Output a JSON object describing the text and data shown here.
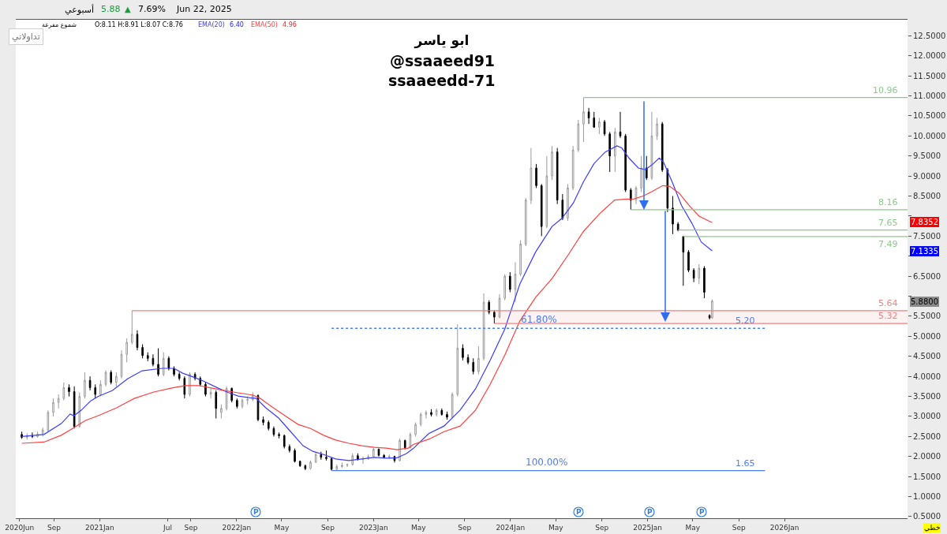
{
  "chart_data": {
    "type": "candlestick",
    "title": "ابو ياسر",
    "xlim": [
      "2020-05-22",
      "2026-11-25"
    ],
    "xticks": [
      {
        "value": "2020-06-01",
        "label": "2020Jun"
      },
      {
        "value": "2020-09-01",
        "label": "Sep"
      },
      {
        "value": "2021-01-01",
        "label": "2021Jan"
      },
      {
        "value": "2021-07-01",
        "label": "Jul"
      },
      {
        "value": "2021-09-01",
        "label": "Sep"
      },
      {
        "value": "2022-01-01",
        "label": "2022Jan"
      },
      {
        "value": "2022-05-01",
        "label": "May"
      },
      {
        "value": "2022-09-01",
        "label": "Sep"
      },
      {
        "value": "2023-01-01",
        "label": "2023Jan"
      },
      {
        "value": "2023-05-01",
        "label": "May"
      },
      {
        "value": "2023-09-01",
        "label": "Sep"
      },
      {
        "value": "2024-01-01",
        "label": "2024Jan"
      },
      {
        "value": "2024-05-01",
        "label": "May"
      },
      {
        "value": "2024-09-01",
        "label": "Sep"
      },
      {
        "value": "2025-01-01",
        "label": "2025Jan"
      },
      {
        "value": "2025-05-01",
        "label": "May"
      },
      {
        "value": "2025-09-01",
        "label": "Sep"
      },
      {
        "value": "2026-01-01",
        "label": "2026Jan"
      }
    ],
    "ylim": [
      0.46,
      12.9
    ],
    "yticks": [
      {
        "value": 0.5,
        "label": "0.5000"
      },
      {
        "value": 1.0,
        "label": "1.0000"
      },
      {
        "value": 1.5,
        "label": "1.5000"
      },
      {
        "value": 2.0,
        "label": "2.0000"
      },
      {
        "value": 2.5,
        "label": "2.5000"
      },
      {
        "value": 3.0,
        "label": "3.0000"
      },
      {
        "value": 3.5,
        "label": "3.5000"
      },
      {
        "value": 4.0,
        "label": "4.0000"
      },
      {
        "value": 4.5,
        "label": "4.5000"
      },
      {
        "value": 5.0,
        "label": "5.0000"
      },
      {
        "value": 5.5,
        "label": "5.5000"
      },
      {
        "value": 6.0,
        "label": null
      },
      {
        "value": 6.5,
        "label": "6.5000"
      },
      {
        "value": 7.0,
        "label": null
      },
      {
        "value": 7.5,
        "label": "7.5000"
      },
      {
        "value": 8.0,
        "label": null
      },
      {
        "value": 8.5,
        "label": "8.5000"
      },
      {
        "value": 9.0,
        "label": "9.0000"
      },
      {
        "value": 9.5,
        "label": "9.5000"
      },
      {
        "value": 10.0,
        "label": "10.0000"
      },
      {
        "value": 10.5,
        "label": "10.5000"
      },
      {
        "value": 11.0,
        "label": "11.0000"
      },
      {
        "value": 11.5,
        "label": "11.5000"
      },
      {
        "value": 12.0,
        "label": "12.0000"
      },
      {
        "value": 12.5,
        "label": "12.5000"
      }
    ],
    "series": [
      {
        "x": [
          "2020-06-07",
          "2020-06-21",
          "2020-07-05",
          "2020-07-19",
          "2020-08-02",
          "2020-08-16",
          "2020-08-30",
          "2020-09-13",
          "2020-09-27",
          "2020-10-11",
          "2020-10-25",
          "2020-11-08",
          "2020-11-22",
          "2020-12-06",
          "2020-12-20",
          "2021-01-03",
          "2021-01-17",
          "2021-01-31",
          "2021-02-14",
          "2021-02-28",
          "2021-03-14",
          "2021-03-28",
          "2021-04-11",
          "2021-04-25",
          "2021-05-09",
          "2021-05-23",
          "2021-06-06",
          "2021-06-20",
          "2021-07-04",
          "2021-07-18",
          "2021-08-01",
          "2021-08-15",
          "2021-08-29",
          "2021-09-12",
          "2021-09-26",
          "2021-10-10",
          "2021-10-24",
          "2021-11-07",
          "2021-11-21",
          "2021-12-05",
          "2021-12-19",
          "2022-01-02",
          "2022-01-16",
          "2022-01-30",
          "2022-02-13",
          "2022-02-27",
          "2022-03-13",
          "2022-03-27",
          "2022-04-10",
          "2022-04-24",
          "2022-05-08",
          "2022-05-22",
          "2022-06-05",
          "2022-06-19",
          "2022-07-03",
          "2022-07-17",
          "2022-07-31",
          "2022-08-14",
          "2022-08-28",
          "2022-09-11",
          "2022-09-25",
          "2022-10-09",
          "2022-10-23",
          "2022-11-06",
          "2022-11-20",
          "2022-12-04",
          "2022-12-18",
          "2023-01-01",
          "2023-01-15",
          "2023-01-29",
          "2023-02-12",
          "2023-02-26",
          "2023-03-12",
          "2023-03-26",
          "2023-04-09",
          "2023-04-23",
          "2023-05-07",
          "2023-05-21",
          "2023-06-04",
          "2023-06-18",
          "2023-07-02",
          "2023-07-16",
          "2023-07-30",
          "2023-08-13",
          "2023-08-27",
          "2023-09-10",
          "2023-09-24",
          "2023-10-08",
          "2023-10-22",
          "2023-11-05",
          "2023-11-19",
          "2023-12-03",
          "2023-12-17",
          "2023-12-31",
          "2024-01-14",
          "2024-01-28",
          "2024-02-11",
          "2024-02-25",
          "2024-03-10",
          "2024-03-24",
          "2024-04-07",
          "2024-04-21",
          "2024-05-05",
          "2024-05-19",
          "2024-06-02",
          "2024-06-16",
          "2024-06-30",
          "2024-07-14",
          "2024-07-28",
          "2024-08-11",
          "2024-08-25",
          "2024-09-08",
          "2024-09-22",
          "2024-10-06",
          "2024-10-20",
          "2024-11-03",
          "2024-11-17",
          "2024-12-01",
          "2024-12-15",
          "2024-12-29",
          "2025-01-12",
          "2025-01-26",
          "2025-02-09",
          "2025-02-23",
          "2025-03-09",
          "2025-03-23",
          "2025-04-06",
          "2025-04-20",
          "2025-05-04",
          "2025-05-18",
          "2025-06-01",
          "2025-06-15",
          "2025-06-22"
        ],
        "ohlc": [
          [
            2.55,
            2.62,
            2.44,
            2.48
          ],
          [
            2.48,
            2.58,
            2.42,
            2.52
          ],
          [
            2.52,
            2.6,
            2.46,
            2.5
          ],
          [
            2.5,
            2.62,
            2.47,
            2.56
          ],
          [
            2.56,
            2.72,
            2.5,
            2.66
          ],
          [
            2.66,
            3.15,
            2.6,
            3.1
          ],
          [
            3.1,
            3.45,
            3.0,
            3.35
          ],
          [
            3.35,
            3.55,
            3.2,
            3.45
          ],
          [
            3.45,
            3.85,
            3.4,
            3.72
          ],
          [
            3.72,
            3.8,
            3.5,
            3.62
          ],
          [
            3.62,
            3.75,
            2.7,
            2.75
          ],
          [
            2.75,
            3.6,
            2.72,
            3.5
          ],
          [
            3.5,
            4.1,
            3.45,
            3.9
          ],
          [
            3.9,
            4.0,
            3.65,
            3.72
          ],
          [
            3.72,
            3.8,
            3.45,
            3.55
          ],
          [
            3.55,
            3.9,
            3.5,
            3.8
          ],
          [
            3.8,
            4.15,
            3.75,
            4.1
          ],
          [
            4.1,
            4.15,
            3.8,
            3.85
          ],
          [
            3.85,
            4.1,
            3.75,
            4.0
          ],
          [
            4.0,
            4.65,
            3.95,
            4.55
          ],
          [
            4.55,
            4.95,
            4.35,
            4.85
          ],
          [
            4.85,
            5.64,
            4.8,
            5.05
          ],
          [
            5.05,
            5.15,
            4.65,
            4.72
          ],
          [
            4.72,
            4.8,
            4.45,
            4.52
          ],
          [
            4.52,
            4.6,
            4.38,
            4.45
          ],
          [
            4.45,
            4.55,
            4.25,
            4.3
          ],
          [
            4.3,
            4.7,
            4.0,
            4.05
          ],
          [
            4.05,
            4.6,
            4.0,
            4.45
          ],
          [
            4.45,
            4.5,
            4.15,
            4.2
          ],
          [
            4.2,
            4.25,
            4.0,
            4.05
          ],
          [
            4.05,
            4.1,
            3.9,
            3.95
          ],
          [
            3.95,
            4.0,
            3.45,
            3.55
          ],
          [
            3.55,
            4.1,
            3.5,
            4.05
          ],
          [
            4.05,
            4.1,
            3.9,
            3.95
          ],
          [
            3.95,
            4.0,
            3.75,
            3.8
          ],
          [
            3.8,
            3.85,
            3.5,
            3.55
          ],
          [
            3.55,
            3.7,
            3.45,
            3.6
          ],
          [
            3.6,
            3.65,
            2.95,
            3.2
          ],
          [
            3.1,
            3.3,
            2.95,
            3.2
          ],
          [
            3.2,
            3.75,
            3.15,
            3.7
          ],
          [
            3.7,
            3.72,
            3.35,
            3.4
          ],
          [
            3.4,
            3.45,
            3.2,
            3.25
          ],
          [
            3.25,
            3.45,
            3.2,
            3.4
          ],
          [
            3.4,
            3.5,
            3.3,
            3.42
          ],
          [
            3.42,
            3.6,
            3.38,
            3.52
          ],
          [
            3.52,
            3.55,
            2.88,
            2.92
          ],
          [
            2.92,
            3.0,
            2.78,
            2.85
          ],
          [
            2.85,
            2.9,
            2.65,
            2.7
          ],
          [
            2.7,
            2.75,
            2.5,
            2.55
          ],
          [
            2.55,
            2.6,
            2.45,
            2.52
          ],
          [
            2.52,
            2.55,
            2.2,
            2.25
          ],
          [
            2.25,
            2.3,
            2.1,
            2.15
          ],
          [
            2.15,
            2.2,
            1.85,
            1.88
          ],
          [
            1.88,
            1.9,
            1.74,
            1.77
          ],
          [
            1.77,
            1.8,
            1.66,
            1.7
          ],
          [
            1.7,
            1.9,
            1.68,
            1.86
          ],
          [
            1.86,
            2.12,
            1.84,
            2.05
          ],
          [
            2.05,
            2.12,
            1.92,
            1.98
          ],
          [
            1.98,
            2.15,
            1.9,
            1.95
          ],
          [
            1.95,
            1.97,
            1.65,
            1.68
          ],
          [
            1.68,
            1.8,
            1.66,
            1.75
          ],
          [
            1.75,
            1.85,
            1.72,
            1.78
          ],
          [
            1.78,
            1.82,
            1.74,
            1.8
          ],
          [
            1.8,
            2.08,
            1.78,
            2.02
          ],
          [
            2.02,
            2.08,
            1.9,
            1.93
          ],
          [
            1.93,
            2.0,
            1.82,
            1.95
          ],
          [
            1.95,
            2.05,
            1.92,
            2.0
          ],
          [
            2.0,
            2.22,
            1.98,
            2.18
          ],
          [
            2.18,
            2.2,
            2.0,
            2.03
          ],
          [
            2.03,
            2.06,
            1.95,
            1.98
          ],
          [
            1.98,
            2.05,
            1.94,
            2.0
          ],
          [
            2.0,
            2.02,
            1.85,
            1.9
          ],
          [
            1.9,
            2.45,
            1.88,
            2.4
          ],
          [
            2.4,
            2.42,
            2.18,
            2.22
          ],
          [
            2.22,
            2.6,
            2.2,
            2.55
          ],
          [
            2.55,
            2.85,
            2.5,
            2.8
          ],
          [
            2.8,
            3.1,
            2.75,
            3.05
          ],
          [
            3.05,
            3.15,
            2.95,
            3.1
          ],
          [
            3.1,
            3.18,
            3.0,
            3.05
          ],
          [
            3.05,
            3.2,
            3.0,
            3.15
          ],
          [
            3.15,
            3.2,
            3.02,
            3.05
          ],
          [
            3.05,
            3.12,
            2.92,
            2.98
          ],
          [
            2.98,
            3.6,
            2.95,
            3.55
          ],
          [
            3.55,
            5.3,
            3.5,
            4.7
          ],
          [
            4.7,
            4.8,
            4.4,
            4.47
          ],
          [
            4.47,
            4.55,
            4.3,
            4.35
          ],
          [
            4.35,
            4.45,
            4.05,
            4.12
          ],
          [
            4.12,
            4.75,
            4.05,
            4.45
          ],
          [
            4.45,
            6.07,
            4.4,
            5.85
          ],
          [
            5.85,
            5.9,
            5.55,
            5.6
          ],
          [
            5.6,
            5.65,
            5.32,
            5.48
          ],
          [
            5.48,
            6.05,
            5.45,
            5.95
          ],
          [
            5.95,
            6.55,
            5.9,
            6.5
          ],
          [
            6.5,
            6.6,
            6.1,
            6.17
          ],
          [
            6.17,
            6.85,
            5.85,
            6.55
          ],
          [
            6.55,
            7.4,
            6.5,
            7.3
          ],
          [
            7.3,
            8.45,
            7.25,
            8.4
          ],
          [
            8.4,
            9.7,
            8.3,
            9.2
          ],
          [
            9.2,
            9.3,
            8.7,
            8.76
          ],
          [
            8.76,
            8.8,
            7.5,
            7.74
          ],
          [
            7.74,
            9.5,
            7.7,
            9.0
          ],
          [
            9.0,
            9.75,
            8.9,
            9.6
          ],
          [
            9.6,
            9.7,
            8.3,
            8.4
          ],
          [
            8.4,
            8.55,
            7.9,
            7.95
          ],
          [
            7.95,
            8.8,
            7.88,
            8.7
          ],
          [
            8.7,
            9.75,
            8.65,
            9.65
          ],
          [
            9.65,
            10.4,
            9.6,
            10.3
          ],
          [
            10.3,
            10.96,
            9.85,
            10.6
          ],
          [
            10.6,
            10.7,
            10.3,
            10.45
          ],
          [
            10.45,
            10.6,
            10.2,
            10.22
          ],
          [
            10.22,
            10.45,
            10.05,
            10.35
          ],
          [
            10.35,
            10.4,
            10.0,
            10.05
          ],
          [
            10.05,
            10.1,
            9.1,
            9.5
          ],
          [
            9.5,
            10.2,
            9.1,
            10.1
          ],
          [
            10.1,
            10.6,
            9.95,
            10.0
          ],
          [
            10.0,
            10.05,
            8.6,
            8.65
          ],
          [
            8.65,
            8.7,
            8.16,
            8.4
          ],
          [
            8.4,
            8.75,
            8.3,
            8.7
          ],
          [
            8.7,
            9.5,
            8.6,
            9.2
          ],
          [
            9.2,
            9.5,
            8.9,
            8.95
          ],
          [
            8.95,
            10.6,
            8.9,
            10.0
          ],
          [
            10.0,
            10.45,
            9.9,
            10.3
          ],
          [
            10.3,
            10.35,
            9.1,
            9.15
          ],
          [
            9.15,
            9.2,
            8.1,
            8.2
          ],
          [
            8.2,
            8.5,
            7.55,
            7.8
          ],
          [
            7.8,
            7.85,
            7.62,
            7.65
          ],
          [
            7.49,
            7.49,
            6.26,
            7.1
          ],
          [
            7.1,
            7.15,
            6.6,
            6.65
          ],
          [
            6.65,
            6.7,
            6.35,
            6.45
          ],
          [
            6.45,
            6.8,
            6.3,
            6.7
          ],
          [
            6.7,
            6.75,
            5.95,
            6.1
          ],
          [
            5.52,
            5.55,
            5.42,
            5.46
          ],
          [
            5.46,
            5.92,
            5.44,
            5.88
          ]
        ],
        "colors": [
          "#000000",
          "#9a9a9a",
          "#000000",
          "#9a9a9a",
          "#9a9a9a",
          "#9a9a9a",
          "#9a9a9a",
          "#9a9a9a",
          "#9a9a9a",
          "#000000",
          "#000000",
          "#9a9a9a",
          "#9a9a9a",
          "#000000",
          "#000000",
          "#9a9a9a",
          "#9a9a9a",
          "#000000",
          "#9a9a9a",
          "#9a9a9a",
          "#9a9a9a",
          "#9a9a9a",
          "#000000",
          "#000000",
          "#000000",
          "#000000",
          "#000000",
          "#9a9a9a",
          "#000000",
          "#000000",
          "#000000",
          "#000000",
          "#9a9a9a",
          "#000000",
          "#000000",
          "#000000",
          "#9a9a9a",
          "#000000",
          "#9a9a9a",
          "#9a9a9a",
          "#000000",
          "#000000",
          "#9a9a9a",
          "#9a9a9a",
          "#9a9a9a",
          "#000000",
          "#000000",
          "#000000",
          "#000000",
          "#000000",
          "#000000",
          "#000000",
          "#000000",
          "#000000",
          "#000000",
          "#9a9a9a",
          "#9a9a9a",
          "#000000",
          "#000000",
          "#000000",
          "#9a9a9a",
          "#9a9a9a",
          "#9a9a9a",
          "#9a9a9a",
          "#000000",
          "#9a9a9a",
          "#9a9a9a",
          "#9a9a9a",
          "#000000",
          "#000000",
          "#9a9a9a",
          "#000000",
          "#9a9a9a",
          "#000000",
          "#9a9a9a",
          "#9a9a9a",
          "#9a9a9a",
          "#9a9a9a",
          "#000000",
          "#9a9a9a",
          "#000000",
          "#000000",
          "#9a9a9a",
          "#9a9a9a",
          "#000000",
          "#000000",
          "#000000",
          "#9a9a9a",
          "#9a9a9a",
          "#000000",
          "#000000",
          "#9a9a9a",
          "#9a9a9a",
          "#000000",
          "#9a9a9a",
          "#9a9a9a",
          "#9a9a9a",
          "#9a9a9a",
          "#000000",
          "#000000",
          "#9a9a9a",
          "#9a9a9a",
          "#000000",
          "#000000",
          "#9a9a9a",
          "#9a9a9a",
          "#9a9a9a",
          "#9a9a9a",
          "#000000",
          "#000000",
          "#9a9a9a",
          "#000000",
          "#000000",
          "#9a9a9a",
          "#000000",
          "#000000",
          "#000000",
          "#9a9a9a",
          "#9a9a9a",
          "#000000",
          "#9a9a9a",
          "#9a9a9a",
          "#000000",
          "#000000",
          "#000000",
          "#000000",
          "#000000",
          "#000000",
          "#000000",
          "#9a9a9a",
          "#000000",
          "#000000",
          "#9a9a9a"
        ]
      },
      {
        "type": "line",
        "name": "EMA(20)",
        "color": "#3c3cff",
        "x": [
          "2020-06-07",
          "2020-08-05",
          "2020-09-20",
          "2020-10-14",
          "2020-10-24",
          "2020-11-12",
          "2020-12-08",
          "2020-12-28",
          "2021-02-04",
          "2021-03-16",
          "2021-04-24",
          "2021-06-16",
          "2021-07-18",
          "2021-08-10",
          "2021-09-08",
          "2021-10-05",
          "2021-11-14",
          "2021-12-09",
          "2022-01-05",
          "2022-02-03",
          "2022-02-22",
          "2022-03-19",
          "2022-04-23",
          "2022-05-25",
          "2022-06-27",
          "2022-07-23",
          "2022-08-21",
          "2022-09-22",
          "2022-10-27",
          "2022-12-01",
          "2023-01-03",
          "2023-02-04",
          "2023-03-05",
          "2023-03-29",
          "2023-04-17",
          "2023-05-28",
          "2023-07-08",
          "2023-08-20",
          "2023-09-30",
          "2023-11-08",
          "2023-12-17",
          "2024-01-26",
          "2024-03-08",
          "2024-04-21",
          "2024-05-17",
          "2024-06-17",
          "2024-07-14",
          "2024-08-11",
          "2024-09-10",
          "2024-10-11",
          "2024-10-24",
          "2024-11-12",
          "2024-12-07",
          "2024-12-26",
          "2025-01-14",
          "2025-02-01",
          "2025-02-12",
          "2025-03-07",
          "2025-04-01",
          "2025-04-29",
          "2025-05-24",
          "2025-06-22"
        ],
        "values": [
          2.5,
          2.55,
          2.82,
          3.06,
          3.02,
          3.15,
          3.39,
          3.5,
          3.65,
          3.94,
          4.14,
          4.2,
          4.2,
          4.08,
          3.98,
          3.88,
          3.7,
          3.6,
          3.51,
          3.47,
          3.45,
          3.22,
          2.96,
          2.62,
          2.27,
          2.13,
          2.05,
          1.94,
          1.9,
          1.94,
          1.98,
          1.96,
          1.97,
          2.07,
          2.2,
          2.57,
          2.76,
          3.16,
          3.69,
          4.4,
          5.18,
          6.3,
          7.1,
          7.74,
          7.94,
          8.33,
          8.86,
          9.31,
          9.6,
          9.75,
          9.7,
          9.45,
          9.2,
          9.16,
          9.29,
          9.45,
          9.35,
          8.86,
          8.27,
          7.82,
          7.35,
          7.1335
        ]
      },
      {
        "type": "line",
        "name": "EMA(50)",
        "color": "#ff4040",
        "x": [
          "2020-06-07",
          "2020-08-05",
          "2020-09-20",
          "2020-10-24",
          "2020-11-24",
          "2020-12-28",
          "2021-02-16",
          "2021-04-03",
          "2021-05-25",
          "2021-07-12",
          "2021-08-17",
          "2021-09-22",
          "2021-10-25",
          "2021-11-26",
          "2022-01-05",
          "2022-02-14",
          "2022-03-05",
          "2022-04-08",
          "2022-05-13",
          "2022-06-14",
          "2022-07-17",
          "2022-08-21",
          "2022-09-22",
          "2022-10-27",
          "2022-12-01",
          "2023-01-03",
          "2023-02-04",
          "2023-03-05",
          "2023-04-04",
          "2023-04-17",
          "2023-05-28",
          "2023-07-08",
          "2023-08-20",
          "2023-09-30",
          "2023-11-08",
          "2023-12-17",
          "2024-01-26",
          "2024-03-08",
          "2024-04-21",
          "2024-06-03",
          "2024-07-14",
          "2024-08-27",
          "2024-10-05",
          "2024-10-30",
          "2024-11-26",
          "2024-12-20",
          "2025-01-14",
          "2025-02-10",
          "2025-03-01",
          "2025-03-26",
          "2025-04-21",
          "2025-05-18",
          "2025-06-22"
        ],
        "values": [
          2.33,
          2.36,
          2.53,
          2.72,
          2.9,
          3.02,
          3.22,
          3.45,
          3.61,
          3.71,
          3.77,
          3.77,
          3.71,
          3.65,
          3.59,
          3.53,
          3.45,
          3.22,
          3.0,
          2.8,
          2.7,
          2.53,
          2.41,
          2.33,
          2.27,
          2.23,
          2.21,
          2.17,
          2.21,
          2.3,
          2.43,
          2.62,
          2.76,
          3.16,
          3.8,
          4.53,
          5.38,
          5.97,
          6.44,
          7.03,
          7.62,
          8.07,
          8.4,
          8.42,
          8.43,
          8.5,
          8.62,
          8.76,
          8.74,
          8.57,
          8.27,
          8.0,
          7.8352
        ]
      },
      {
        "type": "line",
        "name": "10.96",
        "color": "#8cc88c",
        "x": [
          "2024-07-14",
          "2026-11-25"
        ],
        "values": [
          10.96,
          10.96
        ]
      },
      {
        "type": "line",
        "name": "8.16",
        "color": "#8cc88c",
        "x": [
          "2024-11-17",
          "2026-11-25"
        ],
        "values": [
          8.16,
          8.16
        ]
      },
      {
        "type": "line",
        "name": "7.65",
        "color": "#8cc88c",
        "x": [
          "2025-03-23",
          "2026-11-25"
        ],
        "values": [
          7.65,
          7.65
        ]
      },
      {
        "type": "line",
        "name": "7.49",
        "color": "#8cc88c",
        "x": [
          "2025-04-06",
          "2026-11-25"
        ],
        "values": [
          7.49,
          7.49
        ]
      },
      {
        "type": "line",
        "name": "5.64",
        "color": "#f08080",
        "x": [
          "2021-03-28",
          "2026-11-25"
        ],
        "values": [
          5.64,
          5.64
        ]
      },
      {
        "type": "line",
        "name": "5.32",
        "color": "#f08080",
        "x": [
          "2023-11-19",
          "2026-11-25"
        ],
        "values": [
          5.32,
          5.32
        ],
        "lower": [
          5.32,
          5.32
        ],
        "upper": [
          5.64,
          5.64
        ]
      },
      {
        "type": "line",
        "name": "5.20",
        "color": "#4d7cf0",
        "line_style": "dotted",
        "x": [
          "2022-09-11",
          "2025-11-10"
        ],
        "values": [
          5.2,
          5.2
        ]
      },
      {
        "type": "line",
        "name": "1.65",
        "color": "#4d7cf0",
        "x": [
          "2022-09-11",
          "2025-11-10"
        ],
        "values": [
          1.65,
          1.65
        ]
      }
    ],
    "annotations": [
      "أسبوعي",
      "5.88",
      "▲",
      "7.69%",
      "Jun 22, 2025",
      "شموع مفرغة",
      "O:8.11 H:8.91 L:8.07 C:8.76",
      "6.40",
      "4.96",
      "تداولاتي",
      "خطي",
      "@ssaaeed91",
      "ssaaeedd-71",
      "7.8352",
      "7.1335",
      "5.8800",
      "P",
      "P",
      "P",
      "P",
      {
        "text": "61.80%",
        "x": "2024-03-17",
        "y": 5.2
      },
      {
        "text": "100.00%",
        "x": "2024-04-07",
        "y": 1.65
      }
    ]
  }
}
